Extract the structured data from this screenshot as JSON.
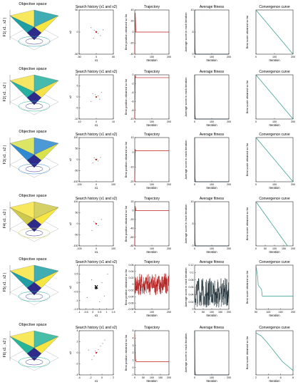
{
  "figure": {
    "columns": [
      {
        "title": "Objective space"
      },
      {
        "title": "Search history (x1 and x2)",
        "xlabel": "x1",
        "ylabel": "x2"
      },
      {
        "title": "Trajectory",
        "xlabel": "Iteration",
        "ylabel": "Best position obtained so far"
      },
      {
        "title": "Average fitness",
        "xlabel": "Iteration",
        "ylabel": "Average score in each iteration"
      },
      {
        "title": "Convergence curve",
        "xlabel": "Iteration",
        "ylabel": "Best score obtained so far"
      }
    ],
    "rows": [
      {
        "surface_label": "F1( x1 , x2 )",
        "surface_colors": [
          "#2e2a8a",
          "#1f9fa5",
          "#f7e541"
        ]
      },
      {
        "surface_label": "F2( x1 , x2 )",
        "surface_colors": [
          "#2e2a8a",
          "#25b0a0",
          "#f5e24a"
        ]
      },
      {
        "surface_label": "F3( x1 , x2 )",
        "surface_colors": [
          "#2e2a8a",
          "#2f88d0",
          "#d8e24a"
        ]
      },
      {
        "surface_label": "F4( x1 , x2 )",
        "surface_colors": [
          "#2e2a8a",
          "#cfc94b",
          "#f7e541"
        ]
      },
      {
        "surface_label": "F5( x1 , x2 )",
        "surface_colors": [
          "#2e2a8a",
          "#1f9fa5",
          "#f7e541"
        ]
      },
      {
        "surface_label": "F6( x1 , x2 )",
        "surface_colors": [
          "#2e2a8a",
          "#27b59a",
          "#f7e541"
        ]
      }
    ]
  },
  "chart_data": [
    {
      "type": "scatter",
      "row": 1,
      "title": "Search history (x1 and x2)",
      "xlabel": "x1",
      "ylabel": "x2",
      "xlim": [
        -50,
        50
      ],
      "ylim": [
        -50,
        50
      ],
      "xticks": [
        "-50",
        "0",
        "50"
      ],
      "yticks": [
        "50",
        "0",
        "-50"
      ],
      "points": [
        [
          0,
          0
        ],
        [
          2,
          1
        ],
        [
          -1,
          2
        ],
        [
          5,
          -3
        ],
        [
          -6,
          4
        ],
        [
          12,
          -8
        ],
        [
          -15,
          10
        ],
        [
          20,
          5
        ],
        [
          -8,
          -14
        ]
      ]
    },
    {
      "type": "line",
      "row": 1,
      "title": "Trajectory",
      "xlabel": "Iteration",
      "ylabel": "Best position obtained so far",
      "xlim": [
        0,
        200
      ],
      "ylim": [
        -40,
        40
      ],
      "xticks": [
        "0",
        "100",
        "200"
      ],
      "yticks": [
        "40",
        "20",
        "0",
        "-20",
        "-40"
      ],
      "x": [
        0,
        3,
        6,
        200
      ],
      "y": [
        -40,
        35,
        0,
        0
      ]
    },
    {
      "type": "line",
      "row": 1,
      "title": "Average fitness",
      "xlabel": "Iteration",
      "ylabel": "Average score in each iteration",
      "xlim": [
        0,
        200
      ],
      "ylim": [
        0,
        10
      ],
      "xticks": [
        "0",
        "100",
        "200"
      ],
      "yticks": [
        "10",
        "5",
        "0"
      ],
      "x": [
        0,
        2,
        5,
        200
      ],
      "y": [
        10,
        1.2,
        0,
        0
      ]
    },
    {
      "type": "line",
      "row": 1,
      "title": "Convergence curve",
      "xlabel": "Iteration",
      "ylabel": "Best score obtained so far",
      "xlim": [
        0,
        200
      ],
      "ylim": [
        0,
        1
      ],
      "xticks": [
        "0",
        "100",
        "200"
      ],
      "x": [
        0,
        200
      ],
      "y": [
        1,
        0
      ]
    },
    {
      "type": "scatter",
      "row": 2,
      "title": "Search history (x1 and x2)",
      "xlabel": "x1",
      "ylabel": "x2",
      "xlim": [
        -10,
        10
      ],
      "ylim": [
        -10,
        10
      ],
      "xticks": [
        "-10",
        "0",
        "10"
      ],
      "yticks": [
        "10",
        "5",
        "0",
        "-5",
        "-10"
      ],
      "points": [
        [
          0,
          0
        ],
        [
          1,
          0.5
        ],
        [
          -0.5,
          1
        ],
        [
          2,
          -1
        ],
        [
          -2,
          1.5
        ],
        [
          3,
          2
        ],
        [
          -3,
          -2
        ]
      ]
    },
    {
      "type": "line",
      "row": 2,
      "title": "Trajectory",
      "xlabel": "Iteration",
      "ylabel": "Best position obtained so far",
      "xlim": [
        0,
        200
      ],
      "ylim": [
        -10,
        1
      ],
      "xticks": [
        "0",
        "100",
        "200"
      ],
      "yticks": [
        "0",
        "-2",
        "-4",
        "-6",
        "-8",
        "-10"
      ],
      "x": [
        0,
        3,
        6,
        200
      ],
      "y": [
        -10,
        0.8,
        0.3,
        0.3
      ]
    },
    {
      "type": "line",
      "row": 2,
      "title": "Average fitness",
      "xlabel": "Iteration",
      "ylabel": "Average score in each iteration",
      "xlim": [
        0,
        200
      ],
      "ylim": [
        0,
        1
      ],
      "xticks": [
        "0",
        "100",
        "200"
      ],
      "x": [
        0,
        2,
        5,
        200
      ],
      "y": [
        1,
        0.1,
        0,
        0
      ]
    },
    {
      "type": "line",
      "row": 2,
      "title": "Convergence curve",
      "xlabel": "Iteration",
      "ylabel": "Best score obtained so far",
      "xlim": [
        0,
        200
      ],
      "ylim": [
        0,
        1
      ],
      "xticks": [
        "0",
        "100",
        "200"
      ],
      "x": [
        0,
        200
      ],
      "y": [
        1,
        0
      ]
    },
    {
      "type": "scatter",
      "row": 3,
      "title": "Search history (x1 and x2)",
      "xlabel": "x1",
      "ylabel": "x2",
      "xlim": [
        -100,
        100
      ],
      "ylim": [
        -100,
        100
      ],
      "xticks": [
        "-100",
        "0",
        "100"
      ],
      "yticks": [
        "100",
        "50",
        "0",
        "-50",
        "-100"
      ],
      "points": [
        [
          0,
          0
        ],
        [
          4,
          3
        ],
        [
          -5,
          2
        ],
        [
          10,
          -6
        ],
        [
          -12,
          8
        ],
        [
          25,
          10
        ],
        [
          -20,
          -15
        ]
      ]
    },
    {
      "type": "line",
      "row": 3,
      "title": "Trajectory",
      "xlabel": "Iteration",
      "ylabel": "Best position obtained so far",
      "xlim": [
        0,
        200
      ],
      "ylim": [
        -20,
        10
      ],
      "xticks": [
        "0",
        "100",
        "200"
      ],
      "yticks": [
        "10",
        "0",
        "-10",
        "-20"
      ],
      "x": [
        0,
        3,
        6,
        200
      ],
      "y": [
        -20,
        2,
        1,
        1
      ]
    },
    {
      "type": "line",
      "row": 3,
      "title": "Average fitness",
      "xlabel": "Iteration",
      "ylabel": "Average score in each iteration",
      "xlim": [
        0,
        200
      ],
      "ylim": [
        0,
        1
      ],
      "xticks": [
        "0",
        "100",
        "200"
      ],
      "x": [
        0,
        2,
        5,
        200
      ],
      "y": [
        1,
        0.1,
        0,
        0
      ]
    },
    {
      "type": "line",
      "row": 3,
      "title": "Convergence curve",
      "xlabel": "Iteration",
      "ylabel": "Best score obtained so far",
      "xlim": [
        0,
        200
      ],
      "ylim": [
        0,
        1
      ],
      "xticks": [
        "0",
        "100",
        "200"
      ],
      "x": [
        0,
        200
      ],
      "y": [
        1,
        0
      ]
    },
    {
      "type": "scatter",
      "row": 4,
      "title": "Search history (x1 and x2)",
      "xlabel": "x1",
      "ylabel": "x2",
      "xlim": [
        -100,
        100
      ],
      "ylim": [
        -100,
        100
      ],
      "xticks": [
        "-100",
        "0",
        "100"
      ],
      "yticks": [
        "100",
        "50",
        "0",
        "-50",
        "-100"
      ],
      "points": [
        [
          0,
          0
        ],
        [
          3,
          2
        ],
        [
          -6,
          4
        ],
        [
          12,
          -8
        ],
        [
          -15,
          10
        ],
        [
          30,
          20
        ],
        [
          -25,
          -30
        ]
      ]
    },
    {
      "type": "line",
      "row": 4,
      "title": "Trajectory",
      "xlabel": "Iteration",
      "ylabel": "Best position obtained so far",
      "xlim": [
        0,
        200
      ],
      "ylim": [
        -80,
        20
      ],
      "xticks": [
        "0",
        "100",
        "200"
      ],
      "yticks": [
        "20",
        "0",
        "-20",
        "-40",
        "-60",
        "-80"
      ],
      "x": [
        0,
        3,
        6,
        200
      ],
      "y": [
        -80,
        10,
        0,
        0
      ]
    },
    {
      "type": "line",
      "row": 4,
      "title": "Average fitness",
      "xlabel": "Iteration",
      "ylabel": "Average score in each iteration",
      "xlim": [
        0,
        200
      ],
      "ylim": [
        0,
        10
      ],
      "xticks": [
        "0",
        "100",
        "200"
      ],
      "yticks": [
        "10",
        "5",
        "0"
      ],
      "x": [
        0,
        2,
        5,
        200
      ],
      "y": [
        10,
        1,
        0,
        0
      ]
    },
    {
      "type": "line",
      "row": 4,
      "title": "Convergence curve",
      "xlabel": "Iteration",
      "ylabel": "Best score obtained so far",
      "xlim": [
        0,
        200
      ],
      "ylim": [
        0,
        1
      ],
      "xticks": [
        "0",
        "50",
        "100",
        "150",
        "200"
      ],
      "x": [
        0,
        170
      ],
      "y": [
        1,
        0
      ]
    },
    {
      "type": "scatter",
      "row": 5,
      "title": "Search history (x1 and x2)",
      "xlabel": "x1",
      "ylabel": "x2",
      "xlim": [
        -1.5,
        1.5
      ],
      "ylim": [
        -1.5,
        1.5
      ],
      "xticks": [
        "-1",
        "-0.5",
        "0",
        "0.5",
        "1",
        "1.5"
      ],
      "yticks": [
        "1",
        "0.5",
        "0",
        "-0.5",
        "-1",
        "-1.5"
      ],
      "points": [
        [
          0,
          0
        ],
        [
          0.05,
          0.03
        ],
        [
          -0.04,
          0.06
        ],
        [
          0.08,
          -0.05
        ],
        [
          -0.1,
          -0.02
        ],
        [
          0.5,
          0.3
        ],
        [
          -0.4,
          0.5
        ],
        [
          0.7,
          -0.6
        ],
        [
          -0.8,
          -0.7
        ],
        [
          1.0,
          0.9
        ],
        [
          0.3,
          -1.0
        ]
      ]
    },
    {
      "type": "line",
      "row": 5,
      "title": "Trajectory",
      "xlabel": "Iteration",
      "ylabel": "Best position obtained so far",
      "xlim": [
        0,
        200
      ],
      "ylim": [
        -0.08,
        0.06
      ],
      "xticks": [
        "0",
        "100",
        "200"
      ],
      "yticks": [
        "0.06",
        "0.04",
        "0.02",
        "0",
        "-0.02",
        "-0.04",
        "-0.06",
        "-0.08"
      ],
      "noise_center": 0,
      "noise_amplitude": 0.035
    },
    {
      "type": "line",
      "row": 5,
      "title": "Average fitness",
      "xlabel": "Iteration",
      "ylabel": "Average score in each iteration",
      "xlim": [
        0,
        200
      ],
      "ylim": [
        0,
        0.12
      ],
      "xticks": [
        "0",
        "50",
        "100",
        "150",
        "200"
      ],
      "yticks": [
        "0.12",
        "0.1",
        "0.08",
        "0.06",
        "0.04",
        "0.02",
        "0"
      ],
      "noise_center": 0.045,
      "noise_amplitude": 0.04
    },
    {
      "type": "line",
      "row": 5,
      "title": "Convergence curve",
      "xlabel": "Iteration",
      "ylabel": "Best score obtained so far",
      "xlim": [
        0,
        200
      ],
      "ylim": [
        0,
        1
      ],
      "xticks": [
        "50",
        "100",
        "150",
        "200"
      ],
      "x": [
        0,
        10,
        12,
        30,
        34,
        200
      ],
      "y": [
        1,
        0.7,
        0.55,
        0.45,
        0.3,
        0.3
      ]
    },
    {
      "type": "scatter",
      "row": 6,
      "title": "Search history (x1 and x2)",
      "xlabel": "x1",
      "ylabel": "x2",
      "xlim": [
        -4,
        4
      ],
      "ylim": [
        -4,
        4
      ],
      "xticks": [
        "-4",
        "-2",
        "0",
        "2"
      ],
      "yticks": [
        "4",
        "2",
        "0",
        "-2",
        "-4"
      ],
      "points": [
        [
          0,
          0
        ],
        [
          0.2,
          0.1
        ],
        [
          -0.2,
          0.3
        ],
        [
          0.5,
          0.6
        ],
        [
          -0.5,
          -0.6
        ],
        [
          1,
          1.2
        ],
        [
          1.5,
          1.7
        ],
        [
          2,
          2.3
        ],
        [
          -1,
          -1.2
        ],
        [
          -1.8,
          0.5
        ]
      ]
    },
    {
      "type": "line",
      "row": 6,
      "title": "Trajectory",
      "xlabel": "Iteration",
      "ylabel": "Best position obtained so far",
      "xlim": [
        0,
        200
      ],
      "ylim": [
        -2,
        5
      ],
      "xticks": [
        "0",
        "50",
        "100",
        "150",
        "200"
      ],
      "yticks": [
        "5",
        "4",
        "3",
        "2",
        "1",
        "0",
        "-1"
      ],
      "x": [
        0,
        4,
        8,
        200
      ],
      "y": [
        4.5,
        0.5,
        0.1,
        0.1
      ]
    },
    {
      "type": "line",
      "row": 6,
      "title": "Average fitness",
      "xlabel": "Iteration",
      "ylabel": "Average score in each iteration",
      "xlim": [
        0,
        200
      ],
      "ylim": [
        0,
        1
      ],
      "xticks": [
        "0",
        "100",
        "200"
      ],
      "x": [
        0,
        2,
        5,
        200
      ],
      "y": [
        1,
        0.1,
        0,
        0
      ]
    },
    {
      "type": "line",
      "row": 6,
      "title": "Convergence curve",
      "xlabel": "Iteration",
      "ylabel": "Best score obtained so far",
      "xlim": [
        1,
        8
      ],
      "ylim": [
        0,
        1
      ],
      "xticks": [
        "2",
        "4",
        "6",
        "8"
      ],
      "x": [
        1,
        2,
        3,
        4,
        5,
        6,
        7,
        8
      ],
      "y": [
        0.95,
        0.88,
        0.75,
        0.6,
        0.45,
        0.3,
        0.2,
        0.1
      ]
    }
  ]
}
